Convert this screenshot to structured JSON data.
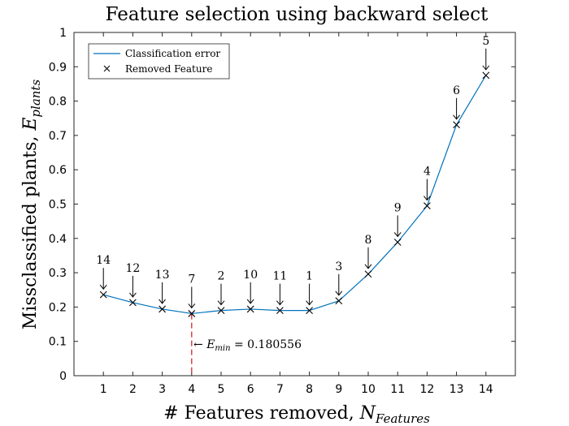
{
  "chart_data": {
    "type": "line",
    "title": "Feature selection using backward select",
    "xlabel": "# Features removed, ",
    "xlabel_math": "N",
    "xlabel_sub": "Features",
    "ylabel": "Missclassified plants, ",
    "ylabel_math": "E",
    "ylabel_sub": "plants",
    "xlim": [
      0,
      15
    ],
    "ylim": [
      0,
      1
    ],
    "xticks": [
      1,
      2,
      3,
      4,
      5,
      6,
      7,
      8,
      9,
      10,
      11,
      12,
      13,
      14
    ],
    "yticks": [
      0,
      0.1,
      0.2,
      0.3,
      0.4,
      0.5,
      0.6,
      0.7,
      0.8,
      0.9,
      1
    ],
    "ytick_labels": [
      "0",
      "0.1",
      "0.2",
      "0.3",
      "0.4",
      "0.5",
      "0.6",
      "0.7",
      "0.8",
      "0.9",
      "1"
    ],
    "series": [
      {
        "name": "Classification error",
        "color": "#0072BD",
        "x": [
          1,
          2,
          3,
          4,
          5,
          6,
          7,
          8,
          9,
          10,
          11,
          12,
          13,
          14
        ],
        "values": [
          0.236,
          0.213,
          0.194,
          0.181,
          0.19,
          0.194,
          0.19,
          0.19,
          0.218,
          0.296,
          0.389,
          0.495,
          0.731,
          0.875
        ]
      }
    ],
    "markers": {
      "name": "Removed Feature",
      "symbol": "x",
      "color": "#000000"
    },
    "annotations": [
      "14",
      "12",
      "13",
      "7",
      "2",
      "10",
      "11",
      "1",
      "3",
      "8",
      "9",
      "4",
      "6",
      "5"
    ],
    "min_line": {
      "x": 4,
      "y": 0.180556,
      "color": "#D62728",
      "label_prefix": "← ",
      "label_math": "E",
      "label_sub": "min",
      "label_value": " = 0.180556"
    },
    "legend_placement": "top-left",
    "grid": false
  }
}
